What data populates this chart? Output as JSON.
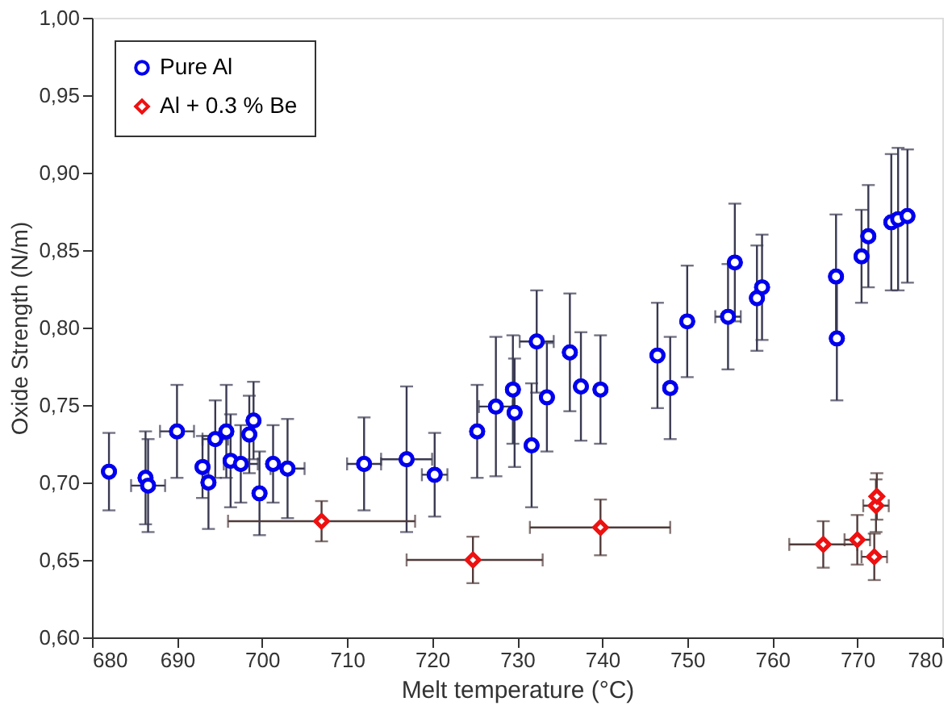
{
  "chart_data": {
    "type": "scatter",
    "xlabel": "Melt temperature (°C)",
    "ylabel": "Oxide Strength (N/m)",
    "series": [
      {
        "name": "Pure Al",
        "color": "#0000ee",
        "marker": "circle",
        "x": [
          682,
          686.3,
          686.6,
          690,
          693,
          693.7,
          694.5,
          695.8,
          696.3,
          697.5,
          698.5,
          699,
          699.7,
          701.3,
          703,
          712,
          717,
          720.3,
          725.3,
          727.5,
          729.5,
          729.7,
          731.7,
          732.3,
          733.5,
          736.2,
          737.5,
          739.8,
          746.5,
          748,
          750,
          754.8,
          755.6,
          758.2,
          758.8,
          767.5,
          767.6,
          770.5,
          771.3,
          774.0,
          774.8,
          775.9
        ],
        "values": [
          0.707,
          0.703,
          0.698,
          0.733,
          0.71,
          0.7,
          0.728,
          0.733,
          0.714,
          0.712,
          0.731,
          0.74,
          0.693,
          0.712,
          0.709,
          0.712,
          0.715,
          0.705,
          0.733,
          0.749,
          0.76,
          0.745,
          0.724,
          0.791,
          0.755,
          0.784,
          0.762,
          0.76,
          0.782,
          0.761,
          0.804,
          0.807,
          0.842,
          0.819,
          0.826,
          0.833,
          0.793,
          0.846,
          0.859,
          0.868,
          0.87,
          0.872
        ],
        "errors": [
          0.025,
          0.03,
          0.03,
          0.03,
          0.02,
          0.03,
          0.025,
          0.03,
          0.03,
          0.025,
          0.025,
          0.025,
          0.027,
          0.025,
          0.032,
          0.03,
          0.047,
          0.027,
          0.03,
          0.045,
          0.035,
          0.035,
          0.04,
          0.033,
          0.035,
          0.038,
          0.035,
          0.035,
          0.034,
          0.033,
          0.036,
          0.034,
          0.038,
          0.034,
          0.034,
          0.04,
          0.04,
          0.03,
          0.033,
          0.044,
          0.046,
          0.043
        ],
        "xerrors": [
          null,
          null,
          2,
          2,
          null,
          null,
          1.5,
          null,
          null,
          2,
          null,
          null,
          null,
          null,
          2,
          2,
          3,
          1.5,
          null,
          2,
          null,
          null,
          null,
          2,
          null,
          null,
          null,
          null,
          null,
          null,
          null,
          1.5,
          null,
          null,
          null,
          null,
          null,
          null,
          null,
          null,
          null,
          null
        ]
      },
      {
        "name": "Al + 0.3 % Be",
        "color": "#ee1111",
        "marker": "diamond",
        "x": [
          707,
          724.8,
          739.8,
          766,
          770,
          772,
          772.2,
          772.3
        ],
        "values": [
          0.675,
          0.65,
          0.671,
          0.66,
          0.663,
          0.652,
          0.685,
          0.691
        ],
        "errors": [
          0.013,
          0.015,
          0.018,
          0.015,
          0.016,
          0.015,
          0.017,
          0.015
        ],
        "xerrors": [
          [
            696,
            718
          ],
          [
            717,
            733
          ],
          [
            731.5,
            748
          ],
          [
            762,
            770
          ],
          1.5,
          1.5,
          1.5,
          null
        ]
      }
    ],
    "xlim": [
      680,
      780
    ],
    "xticks": [
      680,
      690,
      700,
      710,
      720,
      730,
      740,
      750,
      760,
      770,
      780
    ],
    "ylim": [
      0.6,
      1.0
    ],
    "yticks": [
      {
        "value": 0.6,
        "label": "0,60"
      },
      {
        "value": 0.65,
        "label": "0,65"
      },
      {
        "value": 0.7,
        "label": "0,70"
      },
      {
        "value": 0.75,
        "label": "0,75"
      },
      {
        "value": 0.8,
        "label": "0,80"
      },
      {
        "value": 0.85,
        "label": "0,85"
      },
      {
        "value": 0.9,
        "label": "0,90"
      },
      {
        "value": 0.95,
        "label": "0,95"
      },
      {
        "value": 1.0,
        "label": "1,00"
      }
    ],
    "grid": false,
    "legend": "top left"
  }
}
